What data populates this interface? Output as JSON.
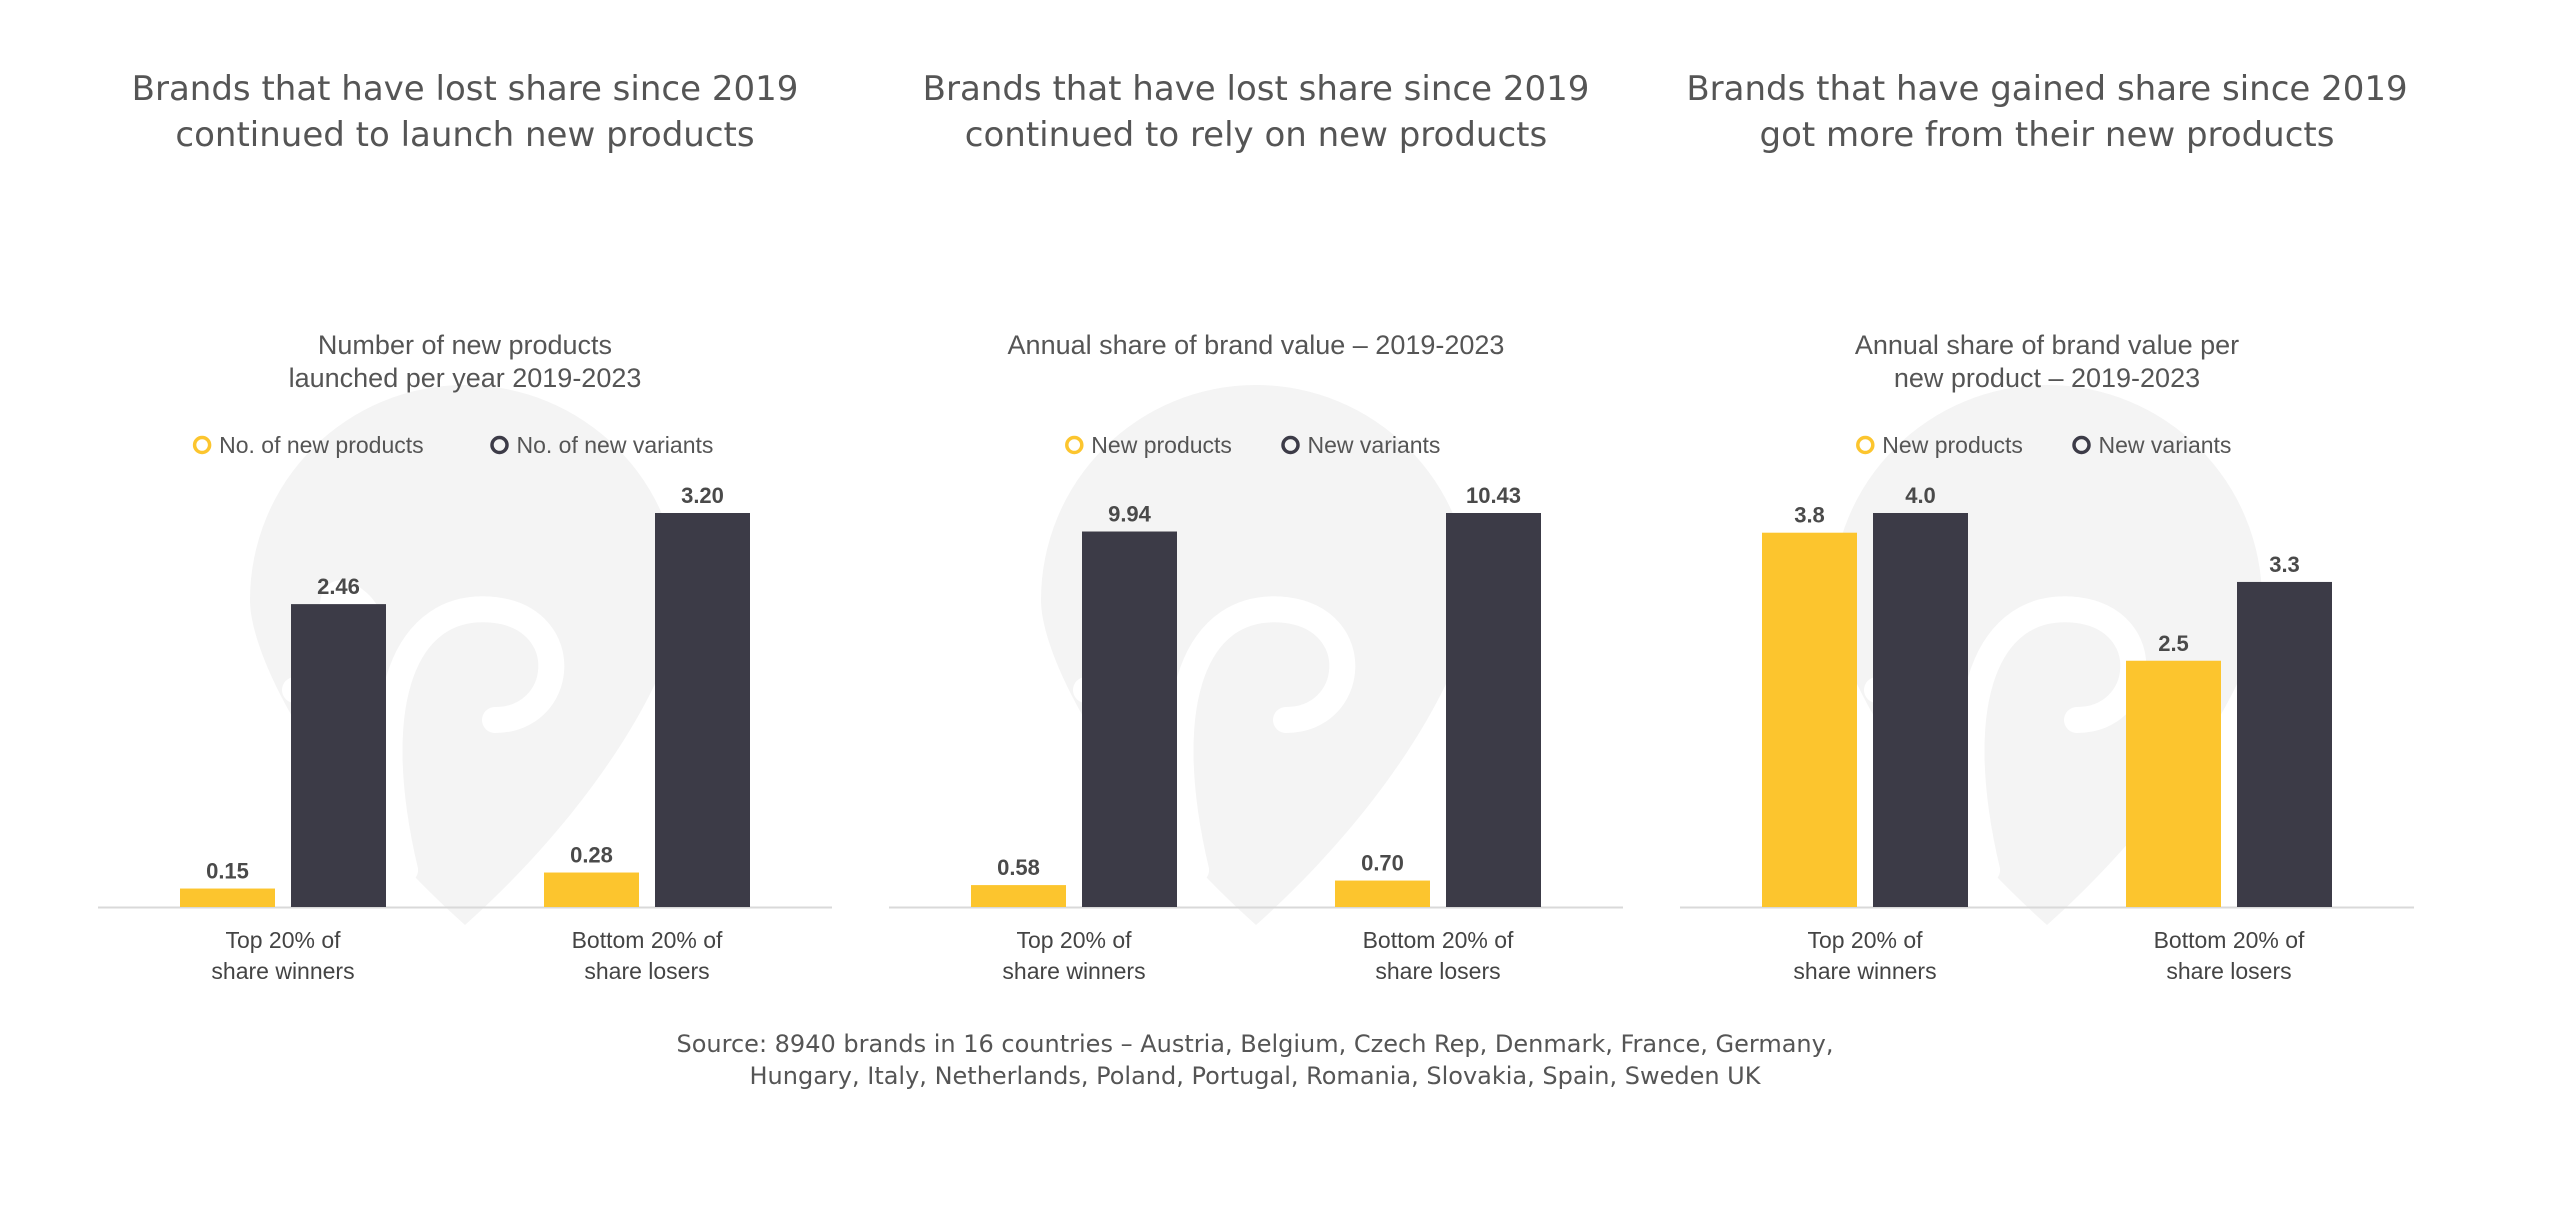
{
  "colors": {
    "new_products": "#fcc52e",
    "new_variants": "#3c3b47",
    "baseline": "#d9d9d9",
    "watermark": "#f4f4f4"
  },
  "watermark_icon": "pin-logo-watermark",
  "chart_data": [
    {
      "type": "bar",
      "headline": [
        "Brands that have lost share since 2019",
        "continued to launch new products"
      ],
      "title": [
        "Number of new products",
        "launched per year 2019-2023"
      ],
      "categories": [
        [
          "Top 20% of",
          "share winners"
        ],
        [
          "Bottom 20% of",
          "share losers"
        ]
      ],
      "series": [
        {
          "name": "No. of new products",
          "values": [
            0.15,
            0.28
          ],
          "labels": [
            "0.15",
            "0.28"
          ]
        },
        {
          "name": "No. of new variants",
          "values": [
            2.46,
            3.2
          ],
          "labels": [
            "2.46",
            "3.20"
          ]
        }
      ],
      "ylim": [
        0,
        3.2
      ],
      "legend": "top",
      "grid": false
    },
    {
      "type": "bar",
      "headline": [
        "Brands that have lost share since 2019",
        "continued to rely on new products"
      ],
      "title": [
        "Annual share of brand value – 2019-2023"
      ],
      "categories": [
        [
          "Top 20% of",
          "share winners"
        ],
        [
          "Bottom 20% of",
          "share losers"
        ]
      ],
      "series": [
        {
          "name": "New products",
          "values": [
            0.58,
            0.7
          ],
          "labels": [
            "0.58",
            "0.70"
          ]
        },
        {
          "name": "New variants",
          "values": [
            9.94,
            10.43
          ],
          "labels": [
            "9.94",
            "10.43"
          ]
        }
      ],
      "ylim": [
        0,
        10.43
      ],
      "legend": "top",
      "grid": false
    },
    {
      "type": "bar",
      "headline": [
        "Brands that have gained share since 2019",
        "got more from their new products"
      ],
      "title": [
        "Annual share of brand value per",
        "new product – 2019-2023"
      ],
      "categories": [
        [
          "Top 20% of",
          "share winners"
        ],
        [
          "Bottom 20% of",
          "share losers"
        ]
      ],
      "series": [
        {
          "name": "New products",
          "values": [
            3.8,
            2.5
          ],
          "labels": [
            "3.8",
            "2.5"
          ]
        },
        {
          "name": "New variants",
          "values": [
            4.0,
            3.3
          ],
          "labels": [
            "4.0",
            "3.3"
          ]
        }
      ],
      "ylim": [
        0,
        4.0
      ],
      "legend": "top",
      "grid": false
    }
  ],
  "source": [
    "Source: 8940 brands in 16 countries – Austria, Belgium, Czech Rep, Denmark, France, Germany,",
    "Hungary, Italy, Netherlands, Poland, Portugal, Romania, Slovakia, Spain, Sweden UK"
  ]
}
